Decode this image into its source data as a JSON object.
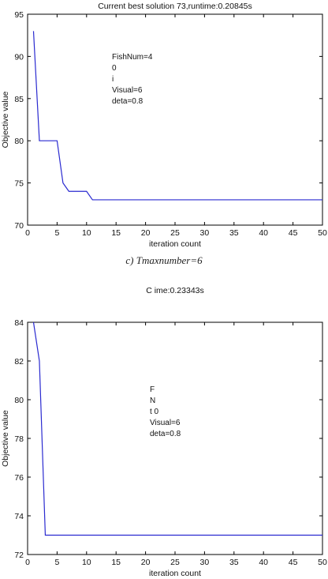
{
  "figure": {
    "caption": "c) Tmaxnumber=6"
  },
  "chart_data": [
    {
      "type": "line",
      "title": "Current best solution 73,runtime:0.20845s",
      "xlabel": "iteration count",
      "ylabel": "Objective value",
      "xlim": [
        0,
        50
      ],
      "ylim": [
        70,
        95
      ],
      "xticks": [
        0,
        5,
        10,
        15,
        20,
        25,
        30,
        35,
        40,
        45,
        50
      ],
      "yticks": [
        70,
        75,
        80,
        85,
        90,
        95
      ],
      "grid": false,
      "annotation_lines": [
        "FishNum=4",
        "0",
        "i",
        "Visual=6",
        "deta=0.8"
      ],
      "series": [
        {
          "color": "#2a2ad0",
          "x": [
            1,
            2,
            3,
            4,
            5,
            6,
            7,
            8,
            9,
            10,
            11,
            12,
            15,
            20,
            25,
            30,
            35,
            40,
            45,
            50
          ],
          "y": [
            93,
            80,
            80,
            80,
            80,
            75,
            74,
            74,
            74,
            74,
            73,
            73,
            73,
            73,
            73,
            73,
            73,
            73,
            73,
            73
          ]
        }
      ]
    },
    {
      "type": "line",
      "title": "C                                          ime:0.23343s",
      "xlabel": "iteration count",
      "ylabel": "Objective value",
      "xlim": [
        0,
        50
      ],
      "ylim": [
        72,
        84
      ],
      "xticks": [
        0,
        5,
        10,
        15,
        20,
        25,
        30,
        35,
        40,
        45,
        50
      ],
      "yticks": [
        72,
        74,
        76,
        78,
        80,
        82,
        84
      ],
      "grid": false,
      "annotation_lines": [
        "F",
        "N",
        "t                0",
        "Visual=6",
        "deta=0.8"
      ],
      "series": [
        {
          "color": "#2a2ad0",
          "x": [
            1,
            2,
            3,
            4,
            5,
            10,
            15,
            20,
            25,
            30,
            35,
            40,
            45,
            50
          ],
          "y": [
            84,
            82,
            73,
            73,
            73,
            73,
            73,
            73,
            73,
            73,
            73,
            73,
            73,
            73
          ]
        }
      ]
    }
  ]
}
